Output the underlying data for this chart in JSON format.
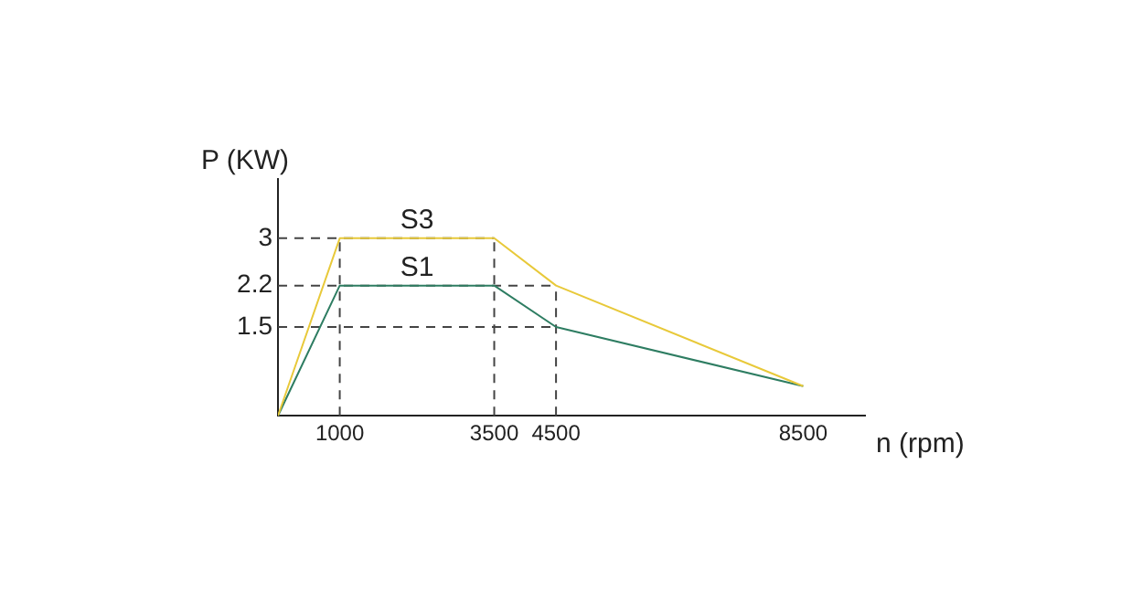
{
  "chart_data": {
    "type": "line",
    "xlabel": "n (rpm)",
    "ylabel": "P (KW)",
    "x": [
      0,
      1000,
      3500,
      4500,
      8500
    ],
    "series": [
      {
        "name": "S3",
        "color": "#e8c93a",
        "values": [
          0,
          3,
          3,
          2.2,
          0.5
        ]
      },
      {
        "name": "S1",
        "color": "#2e7d62",
        "values": [
          0,
          2.2,
          2.2,
          1.5,
          0.5
        ]
      }
    ],
    "xlim": [
      0,
      9500
    ],
    "xticks": [
      1000,
      3500,
      4500,
      8500
    ],
    "ylim": [
      0,
      4
    ],
    "yticks": [
      1.5,
      2.2,
      3
    ],
    "ref_lines": [
      {
        "axis": "y",
        "value": 3,
        "color": "#444444",
        "line_style": "dashed"
      },
      {
        "axis": "y",
        "value": 2.2,
        "color": "#444444",
        "line_style": "dashed"
      },
      {
        "axis": "y",
        "value": 1.5,
        "color": "#444444",
        "line_style": "dashed"
      },
      {
        "axis": "x",
        "value": 1000,
        "color": "#444444",
        "line_style": "dashed"
      },
      {
        "axis": "x",
        "value": 3500,
        "color": "#444444",
        "line_style": "dashed"
      },
      {
        "axis": "x",
        "value": 4500,
        "color": "#444444",
        "line_style": "dashed"
      }
    ],
    "grid": false,
    "legend": false,
    "marker": "none",
    "line_style": "solid"
  }
}
